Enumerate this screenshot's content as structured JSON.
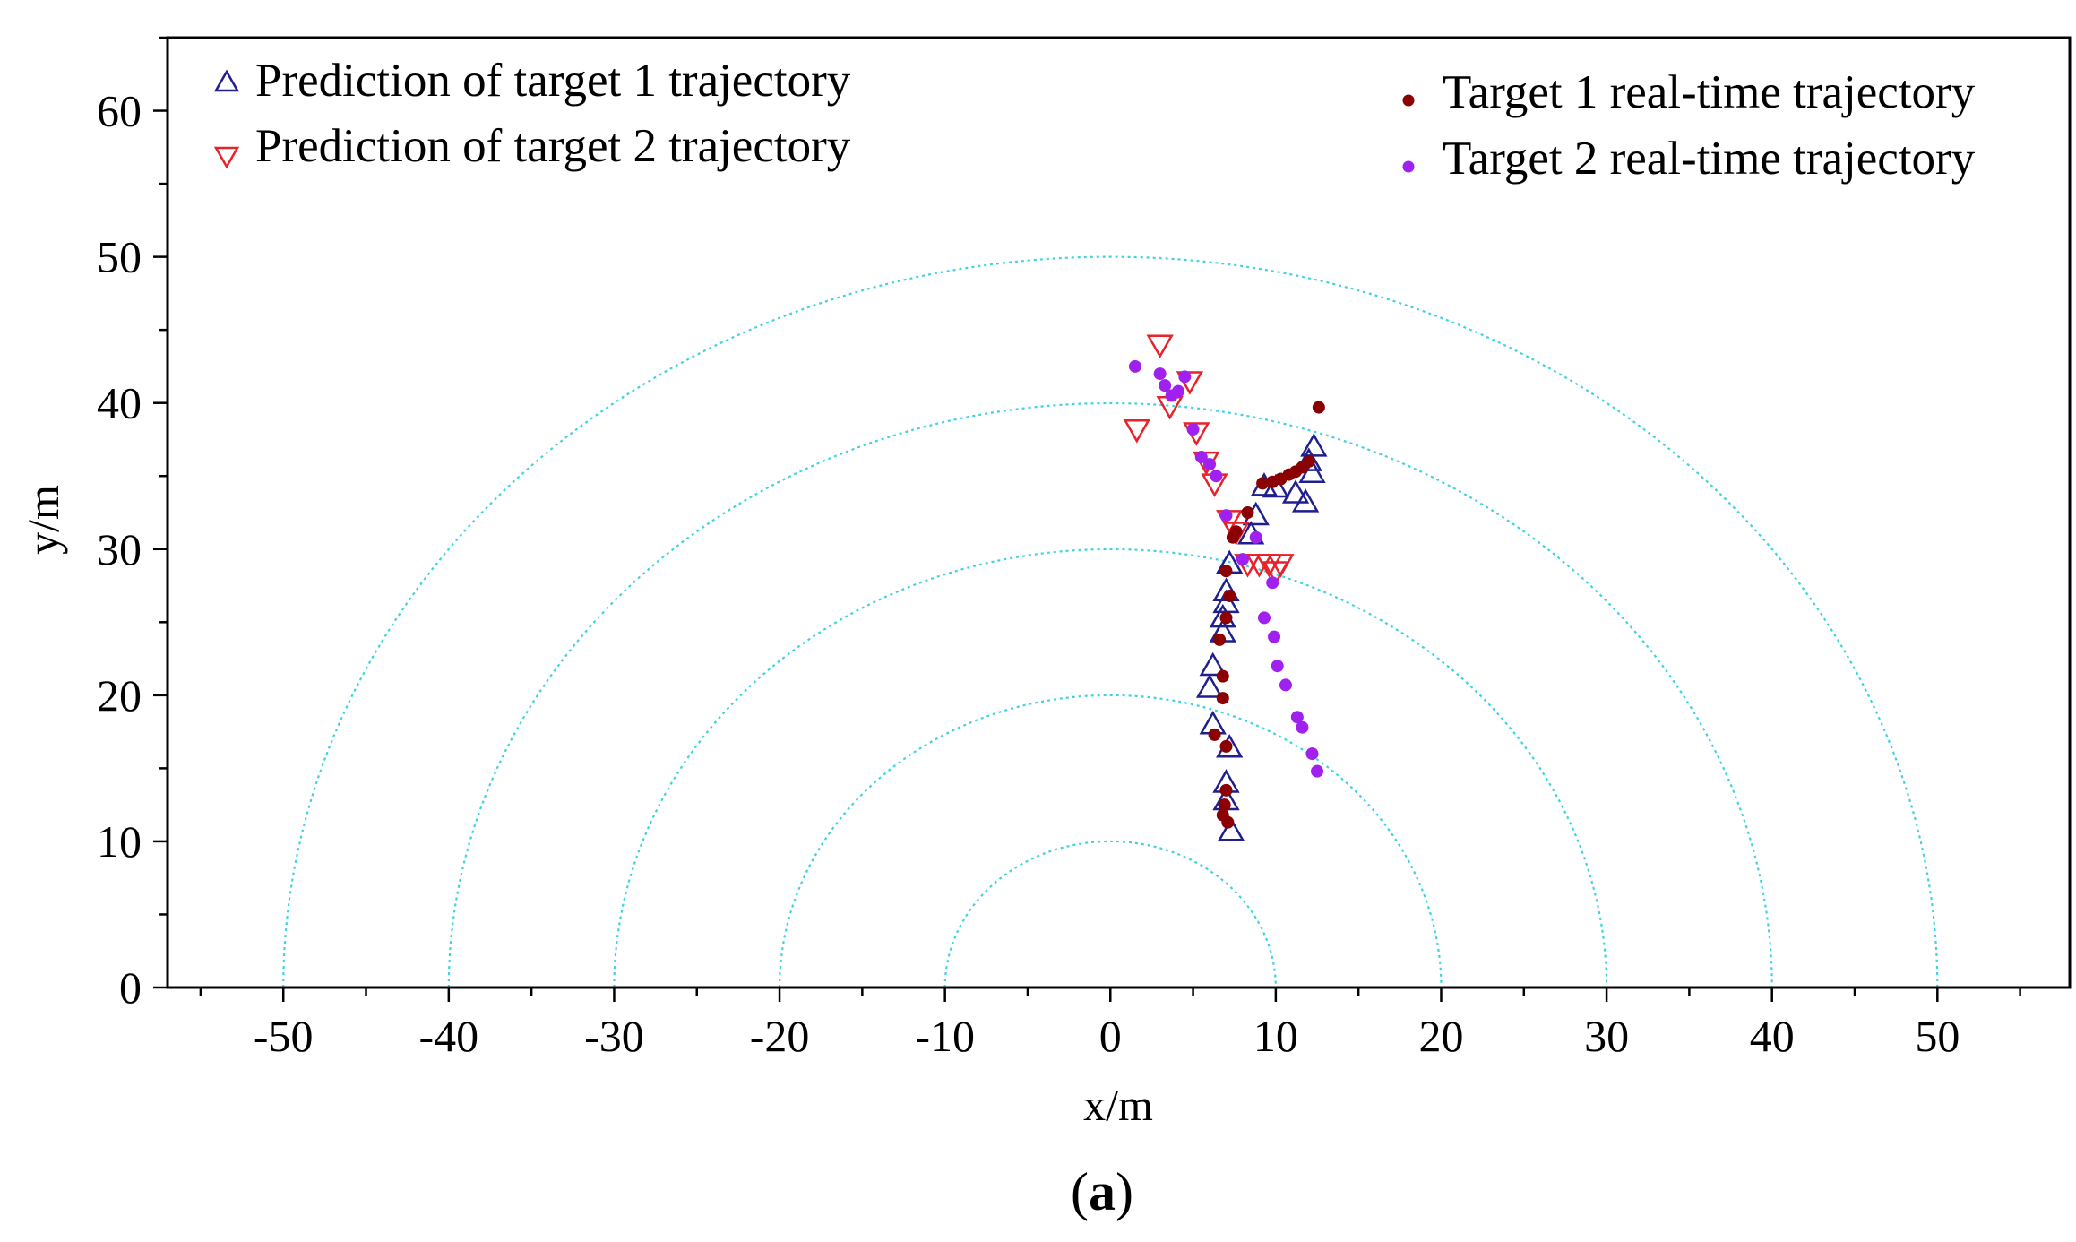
{
  "chart_data": {
    "type": "scatter",
    "title": "",
    "xlabel": "x/m",
    "ylabel": "y/m",
    "xlim": [
      -57,
      58
    ],
    "ylim": [
      0,
      65
    ],
    "xticks": [
      -50,
      -40,
      -30,
      -20,
      -10,
      0,
      10,
      20,
      30,
      40,
      50
    ],
    "yticks": [
      0,
      10,
      20,
      30,
      40,
      50,
      60
    ],
    "range_rings": [
      10,
      20,
      30,
      40,
      50
    ],
    "legend": [
      {
        "key": "pred1",
        "label": "Prediction of target 1 trajectory"
      },
      {
        "key": "pred2",
        "label": "Prediction of target 2 trajectory"
      },
      {
        "key": "real1",
        "label": "Target 1 real-time trajectory"
      },
      {
        "key": "real2",
        "label": "Target 2 real-time trajectory"
      }
    ],
    "series": [
      {
        "key": "pred1",
        "name": "Prediction of target 1 trajectory",
        "marker": "triangle-up",
        "color": "#1f1f8f",
        "points": [
          [
            7.3,
            10.7
          ],
          [
            7.0,
            12.8
          ],
          [
            7.0,
            14.0
          ],
          [
            7.2,
            16.4
          ],
          [
            6.2,
            18.0
          ],
          [
            6.0,
            20.5
          ],
          [
            6.2,
            22.0
          ],
          [
            6.8,
            24.3
          ],
          [
            6.8,
            25.3
          ],
          [
            7.0,
            26.3
          ],
          [
            7.0,
            27.1
          ],
          [
            7.2,
            29.0
          ],
          [
            8.5,
            31.0
          ],
          [
            8.8,
            32.3
          ],
          [
            9.3,
            34.3
          ],
          [
            10.0,
            34.2
          ],
          [
            11.2,
            33.8
          ],
          [
            11.8,
            33.2
          ],
          [
            12.2,
            35.2
          ],
          [
            12.3,
            37.0
          ],
          [
            12.0,
            36.0
          ]
        ]
      },
      {
        "key": "pred2",
        "name": "Prediction of target 2 trajectory",
        "marker": "triangle-down",
        "color": "#e8222a",
        "points": [
          [
            1.6,
            38.2
          ],
          [
            3.0,
            44.0
          ],
          [
            3.6,
            39.8
          ],
          [
            4.8,
            41.5
          ],
          [
            5.2,
            38.0
          ],
          [
            5.8,
            36.0
          ],
          [
            6.3,
            34.5
          ],
          [
            7.2,
            32.0
          ],
          [
            7.6,
            31.2
          ],
          [
            8.3,
            29.0
          ],
          [
            9.0,
            29.0
          ],
          [
            9.6,
            29.0
          ],
          [
            10.0,
            28.5
          ],
          [
            10.3,
            29.0
          ]
        ]
      },
      {
        "key": "real1",
        "name": "Target 1 real-time trajectory",
        "marker": "dot",
        "color": "#8b0000",
        "points": [
          [
            7.1,
            11.3
          ],
          [
            6.8,
            11.8
          ],
          [
            6.9,
            12.5
          ],
          [
            7.0,
            13.5
          ],
          [
            7.0,
            16.5
          ],
          [
            6.3,
            17.3
          ],
          [
            6.8,
            19.8
          ],
          [
            6.8,
            21.3
          ],
          [
            6.6,
            23.8
          ],
          [
            7.0,
            25.3
          ],
          [
            7.2,
            26.8
          ],
          [
            7.0,
            28.5
          ],
          [
            7.4,
            30.8
          ],
          [
            7.6,
            31.2
          ],
          [
            8.3,
            32.5
          ],
          [
            9.2,
            34.5
          ],
          [
            9.8,
            34.6
          ],
          [
            10.3,
            34.8
          ],
          [
            10.8,
            35.1
          ],
          [
            11.2,
            35.3
          ],
          [
            11.6,
            35.6
          ],
          [
            12.0,
            36.0
          ],
          [
            12.6,
            39.7
          ]
        ]
      },
      {
        "key": "real2",
        "name": "Target 2 real-time trajectory",
        "marker": "dot",
        "color": "#a020f0",
        "points": [
          [
            1.5,
            42.5
          ],
          [
            3.0,
            42.0
          ],
          [
            3.3,
            41.2
          ],
          [
            3.7,
            40.5
          ],
          [
            4.1,
            40.8
          ],
          [
            4.5,
            41.8
          ],
          [
            5.0,
            38.2
          ],
          [
            5.5,
            36.3
          ],
          [
            6.0,
            35.8
          ],
          [
            6.4,
            35.0
          ],
          [
            7.0,
            32.3
          ],
          [
            8.0,
            29.3
          ],
          [
            8.8,
            30.8
          ],
          [
            9.3,
            25.3
          ],
          [
            9.8,
            27.7
          ],
          [
            9.9,
            24.0
          ],
          [
            10.1,
            22.0
          ],
          [
            10.6,
            20.7
          ],
          [
            11.3,
            18.5
          ],
          [
            11.6,
            17.8
          ],
          [
            12.2,
            16.0
          ],
          [
            12.5,
            14.8
          ]
        ]
      }
    ]
  },
  "caption": {
    "open": "(",
    "letter": "a",
    "close": ")"
  }
}
